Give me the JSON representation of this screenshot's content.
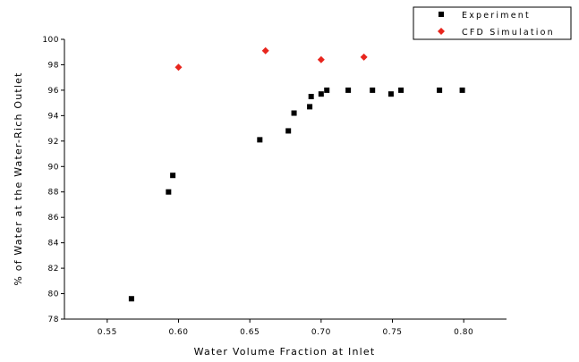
{
  "chart_data": {
    "type": "scatter",
    "title": "",
    "xlabel": "Water Volume Fraction at Inlet",
    "ylabel": "% of Water at the Water-Rich Outlet",
    "xlim": [
      0.52,
      0.83
    ],
    "ylim": [
      78,
      100
    ],
    "x_ticks": [
      "0.55",
      "0.60",
      "0.65",
      "0.70",
      "0.75",
      "0.80"
    ],
    "x_tick_values": [
      0.55,
      0.6,
      0.65,
      0.7,
      0.75,
      0.8
    ],
    "y_ticks": [
      "78",
      "80",
      "82",
      "84",
      "86",
      "88",
      "90",
      "92",
      "94",
      "96",
      "98",
      "100"
    ],
    "y_tick_values": [
      78,
      80,
      82,
      84,
      86,
      88,
      90,
      92,
      94,
      96,
      98,
      100
    ],
    "grid": false,
    "legend_position": "top-right",
    "series": [
      {
        "name": "Experiment",
        "color": "#000000",
        "marker": "square",
        "x": [
          0.567,
          0.593,
          0.596,
          0.657,
          0.677,
          0.681,
          0.692,
          0.693,
          0.7,
          0.704,
          0.719,
          0.736,
          0.749,
          0.756,
          0.783,
          0.799
        ],
        "y": [
          79.6,
          88.0,
          89.3,
          92.1,
          92.8,
          94.2,
          94.7,
          95.5,
          95.7,
          96.0,
          96.0,
          96.0,
          95.7,
          96.0,
          96.0,
          96.0
        ]
      },
      {
        "name": "CFD Simulation",
        "color": "#e8251d",
        "marker": "diamond",
        "x": [
          0.6,
          0.661,
          0.7,
          0.73
        ],
        "y": [
          97.8,
          99.1,
          98.4,
          98.6
        ]
      }
    ]
  }
}
